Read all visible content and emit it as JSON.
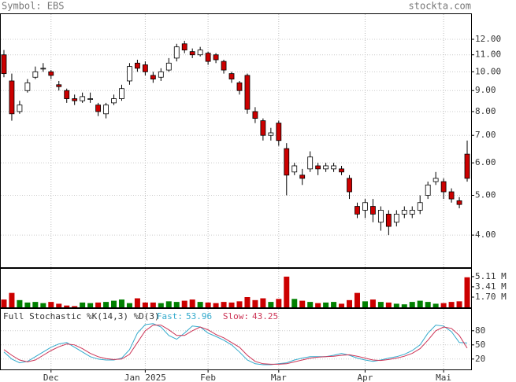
{
  "chart_data": {
    "type": "candlestick",
    "symbol": "Symbol: EBS",
    "source": "stockta.com",
    "open": [
      11.0,
      9.5,
      8.0,
      9.0,
      9.7,
      10.2,
      10.0,
      9.3,
      9.0,
      8.6,
      8.5,
      8.6,
      8.3,
      7.9,
      8.4,
      8.6,
      9.5,
      10.5,
      10.4,
      9.8,
      9.7,
      10.1,
      10.8,
      11.7,
      11.2,
      11.0,
      11.1,
      11.0,
      10.6,
      9.9,
      9.4,
      9.8,
      8.0,
      7.6,
      7.0,
      7.5,
      6.5,
      5.7,
      5.6,
      5.8,
      5.9,
      5.8,
      5.8,
      5.8,
      5.5,
      4.7,
      4.6,
      4.7,
      4.3,
      4.5,
      4.3,
      4.5,
      4.5,
      4.6,
      5.0,
      5.4,
      5.4,
      5.1,
      4.85,
      6.3
    ],
    "high": [
      11.3,
      9.9,
      8.5,
      9.6,
      10.3,
      10.5,
      10.1,
      9.5,
      9.1,
      8.8,
      8.9,
      8.9,
      8.4,
      8.4,
      8.8,
      9.3,
      10.5,
      10.7,
      10.6,
      10.0,
      10.2,
      10.8,
      11.7,
      11.9,
      11.4,
      11.5,
      11.2,
      11.1,
      10.7,
      10.0,
      9.5,
      9.9,
      8.2,
      7.7,
      7.3,
      7.6,
      6.7,
      6.0,
      5.8,
      6.4,
      6.0,
      6.0,
      6.0,
      5.9,
      5.6,
      4.8,
      4.9,
      4.9,
      4.7,
      4.6,
      4.6,
      4.7,
      4.7,
      5.0,
      5.4,
      5.7,
      5.5,
      5.2,
      4.95,
      6.8
    ],
    "low": [
      9.7,
      7.6,
      7.9,
      8.9,
      9.6,
      10.0,
      9.6,
      9.0,
      8.4,
      8.3,
      8.4,
      8.4,
      7.8,
      7.7,
      8.3,
      8.5,
      9.3,
      10.0,
      9.8,
      9.4,
      9.5,
      10.0,
      10.6,
      11.1,
      10.8,
      10.9,
      10.4,
      10.5,
      9.9,
      9.4,
      8.8,
      7.9,
      7.5,
      6.8,
      6.8,
      6.6,
      5.0,
      5.6,
      5.3,
      5.7,
      5.6,
      5.7,
      5.7,
      5.6,
      4.9,
      4.4,
      4.4,
      4.3,
      4.1,
      4.0,
      4.2,
      4.4,
      4.4,
      4.5,
      4.9,
      5.3,
      4.9,
      4.8,
      4.65,
      5.4
    ],
    "close": [
      9.9,
      7.9,
      8.3,
      9.4,
      10.0,
      10.2,
      9.8,
      9.2,
      8.6,
      8.5,
      8.7,
      8.6,
      8.0,
      8.3,
      8.6,
      9.1,
      10.3,
      10.2,
      10.0,
      9.6,
      10.0,
      10.5,
      11.5,
      11.3,
      11.0,
      11.3,
      10.6,
      10.7,
      10.1,
      9.6,
      9.0,
      8.1,
      7.7,
      7.0,
      7.1,
      6.8,
      5.6,
      5.9,
      5.5,
      6.2,
      5.8,
      5.9,
      5.9,
      5.7,
      5.1,
      4.5,
      4.8,
      4.5,
      4.6,
      4.2,
      4.5,
      4.6,
      4.6,
      4.8,
      5.3,
      5.5,
      5.1,
      4.9,
      4.75,
      5.5
    ],
    "up_color": "#ffffff",
    "down_color": "#cc0000",
    "log_scale": true,
    "ylim": [
      3.34,
      13.88
    ],
    "yticks": [
      {
        "value": 12,
        "label": "12.00"
      },
      {
        "value": 11,
        "label": "11.00"
      },
      {
        "value": 10,
        "label": "10.00"
      },
      {
        "value": 9,
        "label": "9.00"
      },
      {
        "value": 8,
        "label": "8.00"
      },
      {
        "value": 7,
        "label": "7.00"
      },
      {
        "value": 6,
        "label": "6.00"
      },
      {
        "value": 5,
        "label": "5.00"
      },
      {
        "value": 4,
        "label": "4.00"
      }
    ],
    "x_ticks": [
      {
        "index": 6,
        "label": "Dec"
      },
      {
        "index": 18,
        "label": "Jan 2025"
      },
      {
        "index": 26,
        "label": "Feb"
      },
      {
        "index": 35,
        "label": "Mar"
      },
      {
        "index": 46,
        "label": "Apr"
      },
      {
        "index": 56,
        "label": "Mai"
      }
    ],
    "volume": {
      "values": [
        1.3,
        2.4,
        1.2,
        0.8,
        0.9,
        0.7,
        0.9,
        0.6,
        0.3,
        0.2,
        0.8,
        0.7,
        0.8,
        0.9,
        1.1,
        1.3,
        0.7,
        1.5,
        0.8,
        0.8,
        0.7,
        1.0,
        0.9,
        1.1,
        1.3,
        0.9,
        0.8,
        0.7,
        0.9,
        0.8,
        1.0,
        1.7,
        1.2,
        1.5,
        0.9,
        1.4,
        5.11,
        1.4,
        1.1,
        0.9,
        0.7,
        0.8,
        0.9,
        0.6,
        1.2,
        2.4,
        1.0,
        1.3,
        0.9,
        0.8,
        0.6,
        0.5,
        0.9,
        1.1,
        0.9,
        0.6,
        0.7,
        0.9,
        1.0,
        5.0
      ],
      "up_color": "#008000",
      "down_color": "#cc0000",
      "ylim": [
        0,
        6.54
      ],
      "yticks": [
        {
          "value": 5.11,
          "label": "5.11 M"
        },
        {
          "value": 3.41,
          "label": "3.41 M"
        },
        {
          "value": 1.7,
          "label": "1.70 M"
        }
      ]
    },
    "stochastic": {
      "title": "Full Stochastic %K(14,3) %D(3)",
      "fast_label": "Fast:",
      "fast_value": 53.96,
      "slow_label": "Slow:",
      "slow_value": 43.25,
      "ylim": [
        -2,
        128
      ],
      "yticks": [
        80,
        50,
        20
      ],
      "series": [
        {
          "name": "Fast",
          "color": "#33aacc",
          "values": [
            35,
            20,
            12,
            15,
            25,
            35,
            45,
            52,
            55,
            45,
            35,
            25,
            20,
            18,
            18,
            22,
            40,
            75,
            93,
            95,
            88,
            70,
            62,
            75,
            90,
            88,
            75,
            68,
            60,
            50,
            35,
            18,
            10,
            8,
            8,
            10,
            12,
            18,
            22,
            25,
            25,
            25,
            28,
            32,
            28,
            22,
            18,
            15,
            18,
            22,
            25,
            30,
            38,
            50,
            75,
            92,
            90,
            78,
            55,
            53.96
          ]
        },
        {
          "name": "Slow",
          "color": "#cc3355",
          "values": [
            40,
            28,
            18,
            14,
            18,
            28,
            38,
            46,
            52,
            50,
            42,
            32,
            25,
            21,
            19,
            20,
            30,
            55,
            80,
            92,
            92,
            82,
            70,
            70,
            80,
            88,
            82,
            72,
            65,
            55,
            45,
            28,
            15,
            10,
            9,
            9,
            10,
            14,
            18,
            22,
            24,
            25,
            26,
            28,
            29,
            26,
            22,
            18,
            17,
            19,
            22,
            26,
            32,
            42,
            60,
            80,
            88,
            85,
            70,
            43.25
          ]
        }
      ]
    }
  }
}
